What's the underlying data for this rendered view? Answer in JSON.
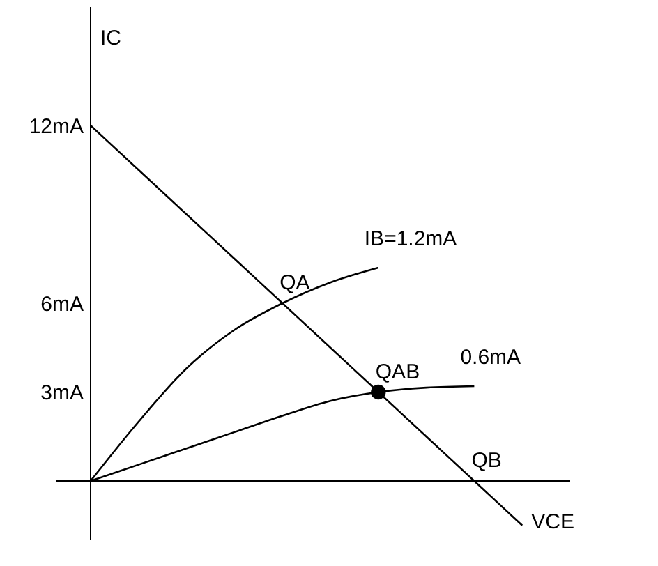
{
  "chart_data": {
    "type": "line",
    "xlabel": "VCE",
    "ylabel": "IC",
    "categories": [
      null,
      null,
      null,
      null,
      null,
      null,
      null,
      null,
      null,
      null,
      null
    ],
    "ylim": [
      -2,
      16
    ],
    "yticks": [
      {
        "value": 3,
        "label": "3mA"
      },
      {
        "value": 6,
        "label": "6mA"
      },
      {
        "value": 12,
        "label": "12mA"
      }
    ],
    "tick_labels": "y",
    "series": [
      {
        "color": "#000000",
        "values": [
          12,
          10.5,
          9,
          7.5,
          6,
          4.5,
          3,
          1.5,
          0,
          -1.5,
          null
        ]
      },
      {
        "name": "IB=1.2mA",
        "color": "#000000",
        "values": [
          0,
          2,
          3.8,
          5.1,
          6,
          6.7,
          7.2,
          null,
          null,
          null,
          null
        ]
      },
      {
        "name": "0.6mA",
        "color": "#000000",
        "values": [
          0,
          0.55,
          1.1,
          1.65,
          2.2,
          2.7,
          3,
          3.15,
          3.2,
          null,
          null
        ]
      },
      {
        "type": "scatter",
        "marker": "circle",
        "color": "#000000",
        "values": [
          null,
          null,
          null,
          null,
          null,
          null,
          3,
          null,
          null,
          null,
          null
        ]
      }
    ],
    "annotations": [
      {
        "text": "QA",
        "y": 6
      },
      {
        "text": "QAB",
        "y": 3
      },
      "QB"
    ]
  }
}
